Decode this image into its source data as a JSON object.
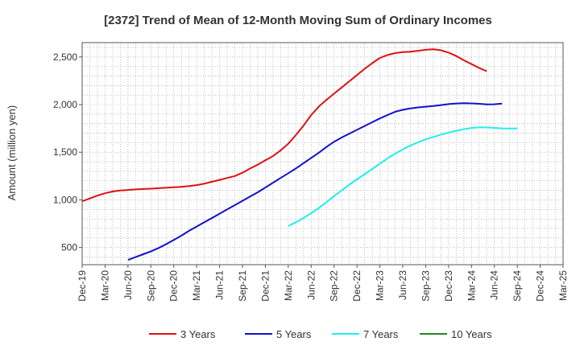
{
  "chart_data": {
    "type": "line",
    "title": "[2372]  Trend of Mean of 12-Month Moving Sum of Ordinary Incomes",
    "xlabel": "",
    "ylabel": "Amount (million yen)",
    "ylim": [
      320,
      2650
    ],
    "yticks": [
      500,
      1000,
      1500,
      2000,
      2500
    ],
    "ytick_labels": [
      "500",
      "1,000",
      "1,500",
      "2,000",
      "2,500"
    ],
    "x_tick_labels": [
      "Dec-19",
      "Mar-20",
      "Jun-20",
      "Sep-20",
      "Dec-20",
      "Mar-21",
      "Jun-21",
      "Sep-21",
      "Dec-21",
      "Mar-22",
      "Jun-22",
      "Sep-22",
      "Dec-22",
      "Mar-23",
      "Jun-23",
      "Sep-23",
      "Dec-23",
      "Mar-24",
      "Jun-24",
      "Sep-24",
      "Dec-24",
      "Mar-25"
    ],
    "grid": true,
    "legend_position": "bottom",
    "series": [
      {
        "name": "3 Years",
        "color": "#dd1111",
        "start_index": 0,
        "values": [
          985,
          1015,
          1045,
          1070,
          1088,
          1098,
          1104,
          1110,
          1114,
          1118,
          1123,
          1127,
          1132,
          1137,
          1145,
          1155,
          1170,
          1190,
          1210,
          1230,
          1250,
          1285,
          1330,
          1370,
          1415,
          1460,
          1520,
          1590,
          1680,
          1780,
          1890,
          1980,
          2050,
          2115,
          2180,
          2245,
          2310,
          2375,
          2435,
          2490,
          2520,
          2540,
          2550,
          2555,
          2565,
          2575,
          2580,
          2570,
          2545,
          2510,
          2465,
          2425,
          2385,
          2350
        ]
      },
      {
        "name": "5 Years",
        "color": "#1111cc",
        "start_index": 6,
        "values": [
          370,
          400,
          430,
          460,
          495,
          535,
          580,
          625,
          675,
          720,
          765,
          810,
          855,
          900,
          945,
          990,
          1035,
          1080,
          1130,
          1180,
          1230,
          1280,
          1330,
          1385,
          1440,
          1495,
          1555,
          1610,
          1655,
          1695,
          1735,
          1775,
          1815,
          1855,
          1890,
          1925,
          1945,
          1960,
          1970,
          1978,
          1985,
          1995,
          2005,
          2012,
          2015,
          2013,
          2008,
          2002,
          2003,
          2010
        ]
      },
      {
        "name": "7 Years",
        "color": "#22eeee",
        "start_index": 27,
        "values": [
          725,
          765,
          810,
          860,
          915,
          975,
          1040,
          1100,
          1160,
          1215,
          1270,
          1325,
          1380,
          1435,
          1485,
          1530,
          1570,
          1605,
          1635,
          1660,
          1685,
          1705,
          1725,
          1742,
          1755,
          1760,
          1760,
          1755,
          1750,
          1748,
          1750
        ]
      },
      {
        "name": "10 Years",
        "color": "#228822",
        "start_index": 0,
        "values": []
      }
    ]
  }
}
